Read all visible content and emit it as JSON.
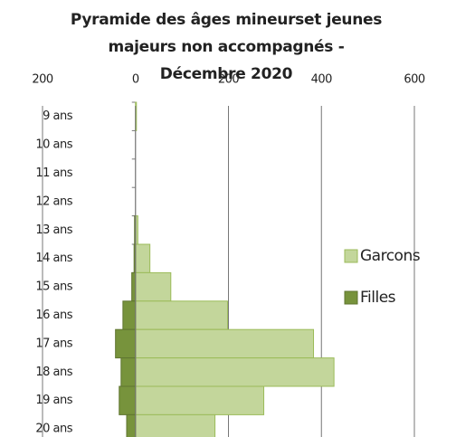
{
  "chart_data": {
    "type": "pyramid",
    "title": [
      "Pyramide des âges mineurset jeunes",
      "majeurs non accompagnés -",
      "Décembre 2020"
    ],
    "categories": [
      "9 ans",
      "10 ans",
      "11 ans",
      "12 ans",
      "13 ans",
      "14 ans",
      "15 ans",
      "16 ans",
      "17 ans",
      "18 ans",
      "19 ans",
      "20 ans"
    ],
    "series": [
      {
        "name": "Garcons",
        "color": "#c3d69b",
        "values": [
          2,
          0,
          0,
          0,
          5,
          31,
          76,
          198,
          383,
          427,
          276,
          171
        ]
      },
      {
        "name": "Filles",
        "color": "#77933c",
        "values": [
          0,
          0,
          0,
          0,
          2,
          3,
          8,
          27,
          43,
          31,
          35,
          19
        ]
      }
    ],
    "xlim": [
      -200,
      600
    ],
    "xticks": [
      {
        "value": -200,
        "label": "200"
      },
      0,
      200,
      400,
      600
    ],
    "grid": true,
    "legend": "right"
  }
}
